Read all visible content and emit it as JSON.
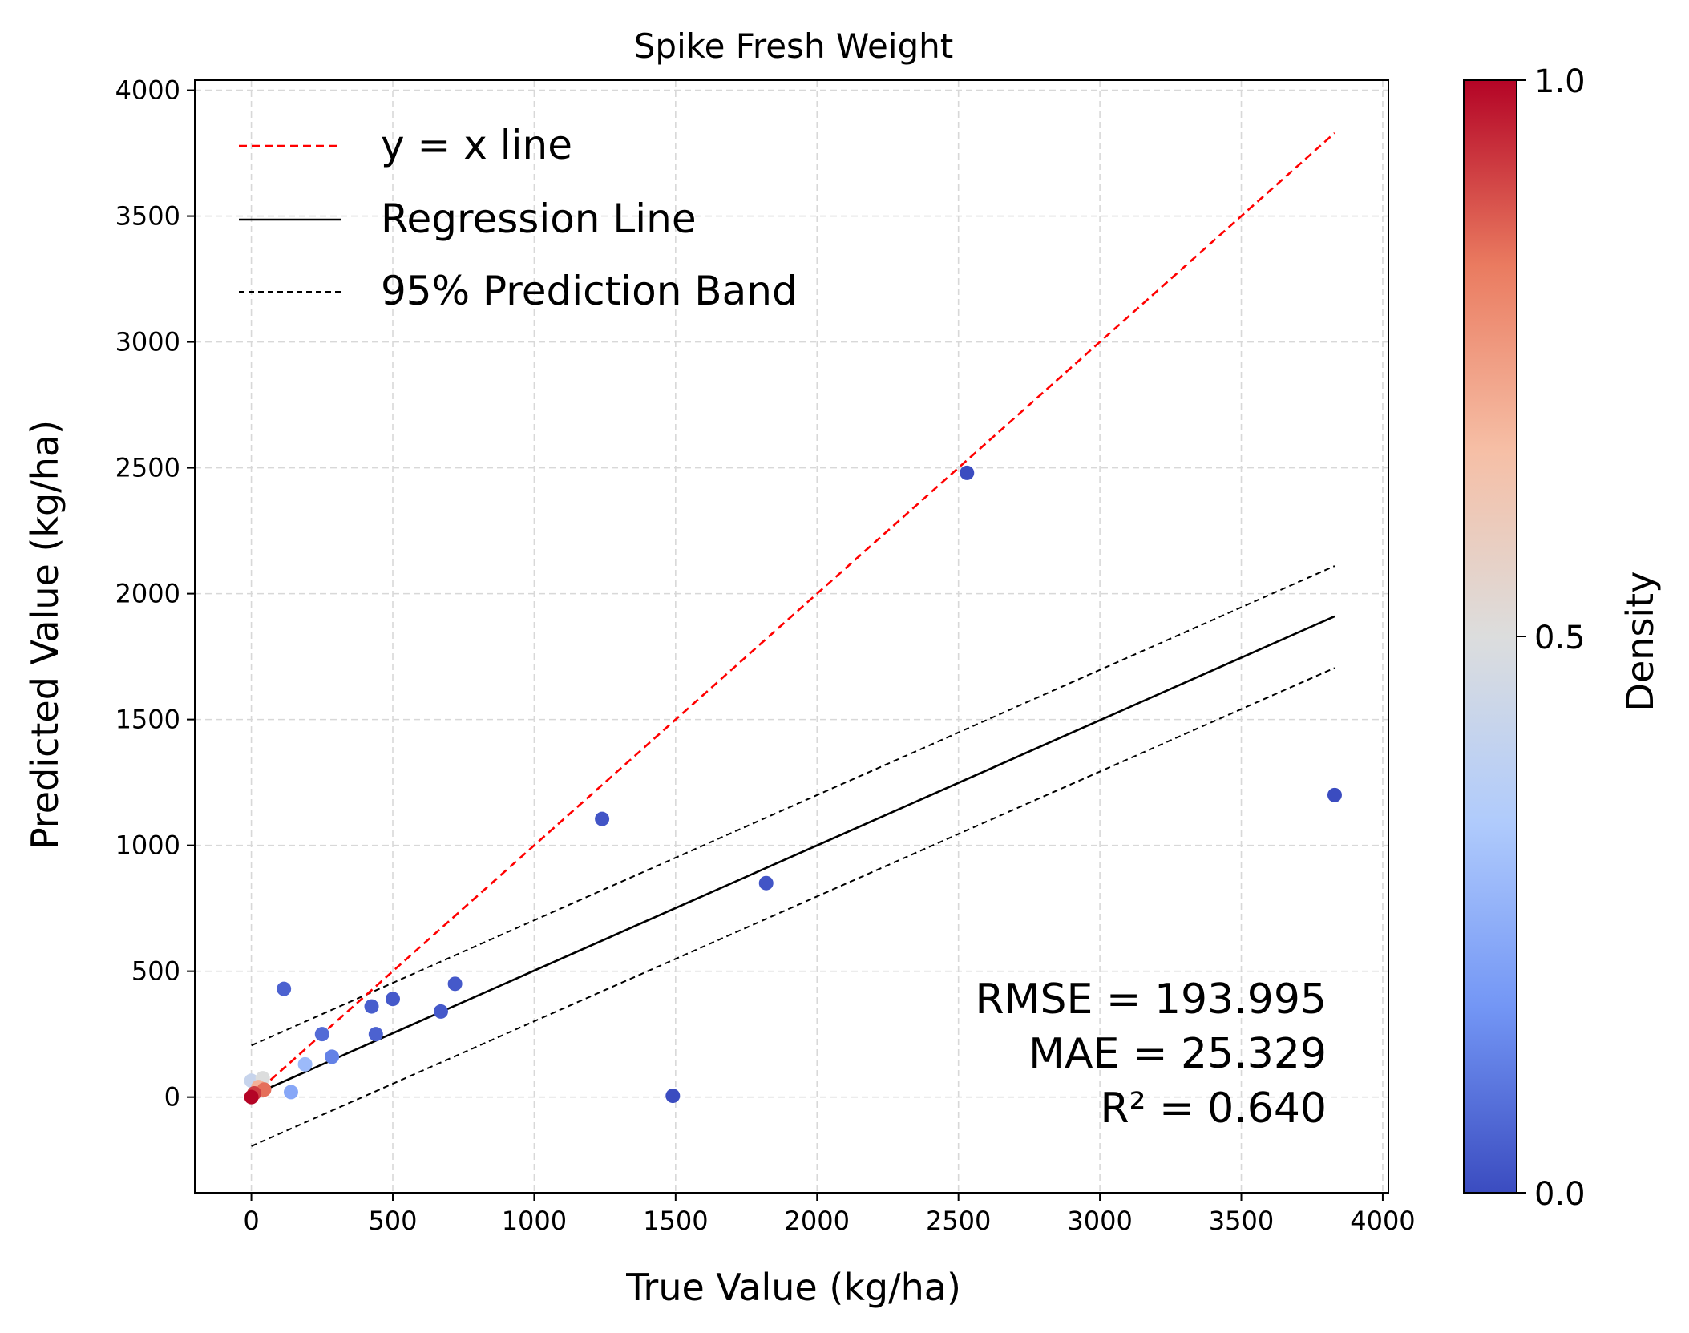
{
  "chart_data": {
    "type": "scatter",
    "title": "Spike Fresh Weight",
    "xlabel": "True Value (kg/ha)",
    "ylabel": "Predicted Value (kg/ha)",
    "xlim": [
      -200,
      4020
    ],
    "ylim": [
      -380,
      4040
    ],
    "xticks": [
      0,
      500,
      1000,
      1500,
      2000,
      2500,
      3000,
      3500,
      4000
    ],
    "yticks": [
      0,
      500,
      1000,
      1500,
      2000,
      2500,
      3000,
      3500,
      4000
    ],
    "grid": true,
    "legend": {
      "placement": "top-left",
      "entries": [
        {
          "label": "y = x line",
          "color": "#ff0000",
          "dash": "dashed"
        },
        {
          "label": "Regression Line",
          "color": "#000000",
          "dash": "solid"
        },
        {
          "label": "95% Prediction Band",
          "color": "#000000",
          "dash": "dashed"
        }
      ]
    },
    "lines": {
      "identity": {
        "x": [
          0,
          3830
        ],
        "y": [
          0,
          3830
        ],
        "color": "#ff0000"
      },
      "regression": {
        "x": [
          0,
          3830
        ],
        "y": [
          5,
          1910
        ],
        "color": "#000000"
      },
      "band_upper": {
        "x": [
          0,
          3830
        ],
        "y": [
          205,
          2110
        ],
        "color": "#000000"
      },
      "band_lower": {
        "x": [
          0,
          3830
        ],
        "y": [
          -195,
          1705
        ],
        "color": "#000000"
      }
    },
    "points": [
      {
        "x": 2530,
        "y": 2480,
        "density": 0.0
      },
      {
        "x": 3830,
        "y": 1200,
        "density": 0.0
      },
      {
        "x": 1240,
        "y": 1105,
        "density": 0.02
      },
      {
        "x": 1820,
        "y": 850,
        "density": 0.02
      },
      {
        "x": 1490,
        "y": 5,
        "density": 0.0
      },
      {
        "x": 115,
        "y": 430,
        "density": 0.05
      },
      {
        "x": 720,
        "y": 450,
        "density": 0.03
      },
      {
        "x": 500,
        "y": 390,
        "density": 0.03
      },
      {
        "x": 425,
        "y": 360,
        "density": 0.04
      },
      {
        "x": 670,
        "y": 340,
        "density": 0.03
      },
      {
        "x": 250,
        "y": 250,
        "density": 0.07
      },
      {
        "x": 440,
        "y": 250,
        "density": 0.05
      },
      {
        "x": 285,
        "y": 160,
        "density": 0.12
      },
      {
        "x": 190,
        "y": 130,
        "density": 0.28
      },
      {
        "x": 140,
        "y": 20,
        "density": 0.22
      },
      {
        "x": 40,
        "y": 75,
        "density": 0.5
      },
      {
        "x": 0,
        "y": 65,
        "density": 0.42
      },
      {
        "x": 25,
        "y": 40,
        "density": 0.7
      },
      {
        "x": 45,
        "y": 30,
        "density": 0.85
      },
      {
        "x": 10,
        "y": 15,
        "density": 0.92
      },
      {
        "x": 0,
        "y": 0,
        "density": 1.0
      }
    ],
    "annotations": [
      "RMSE = 193.995",
      "MAE = 25.329",
      "R² = 0.640"
    ],
    "colorbar": {
      "label": "Density",
      "min": 0.0,
      "max": 1.0,
      "ticks": [
        "0.0",
        "0.5",
        "1.0"
      ],
      "colormap": "coolwarm",
      "stops": [
        "#3b4cc0",
        "#7396f5",
        "#b0cbfc",
        "#dcdddd",
        "#f6bfa6",
        "#ea7b60",
        "#b40426"
      ]
    }
  }
}
